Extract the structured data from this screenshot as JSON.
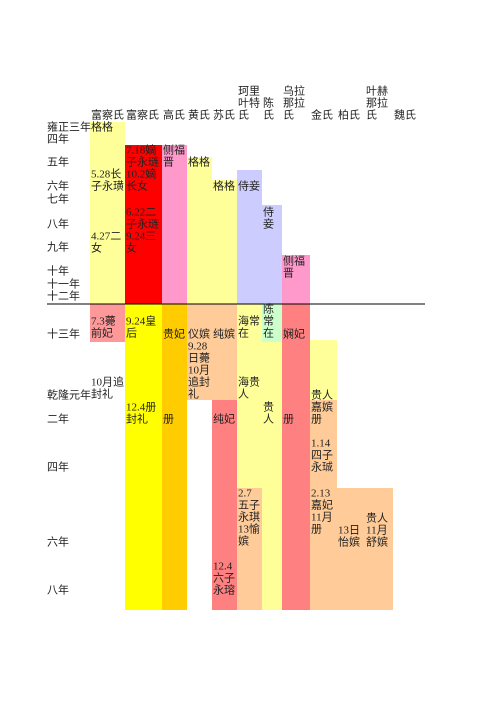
{
  "headers": [
    [
      "富察氏"
    ],
    [
      "富察氏"
    ],
    [
      "高氏"
    ],
    [
      "黄氏"
    ],
    [
      "苏氏"
    ],
    [
      "珂里",
      "叶特",
      "氏"
    ],
    [
      "陈",
      "氏"
    ],
    [
      "乌拉",
      "那拉",
      "氏"
    ],
    [
      "金氏"
    ],
    [
      "柏氏"
    ],
    [
      "叶赫",
      "那拉",
      "氏"
    ],
    [
      "魏氏"
    ]
  ],
  "rows": [
    "雍正三年",
    "四年",
    "五年",
    "六年",
    "七年",
    "八年",
    "九年",
    "十年",
    "十一年",
    "十二年",
    "十三年",
    "乾隆元年",
    "二年",
    "四年",
    "六年",
    "八年"
  ],
  "notes": [
    [
      "格格"
    ],
    [
      "7.18嫡",
      "子永琏",
      "10.2嫡",
      "长女"
    ],
    [
      "侧福",
      "晋"
    ],
    [
      "格格"
    ],
    [
      "5.28长",
      "子永璜"
    ],
    [
      "格格"
    ],
    [
      "侍妾"
    ],
    [
      "侍",
      "妾"
    ],
    [
      "6.22二",
      "子永琏",
      "9.24三",
      "女"
    ],
    [
      "4.27二",
      "女"
    ],
    [
      "侧福",
      "晋"
    ],
    [
      "7.3薨",
      "前妃"
    ],
    [
      "9.24皇",
      "后"
    ],
    [
      "贵妃"
    ],
    [
      "仪嫔"
    ],
    [
      "纯嫔"
    ],
    [
      "海常",
      "在"
    ],
    [
      "陈",
      "常",
      "在"
    ],
    [
      "娴妃"
    ],
    [
      "9.28",
      "日薨",
      "10月",
      "追封",
      "礼"
    ],
    [
      "10月追",
      "封礼"
    ],
    [
      "海贵",
      "人"
    ],
    [
      "贵人",
      "嘉嫔",
      "册"
    ],
    [
      "12.4册",
      "封礼"
    ],
    [
      "册"
    ],
    [
      "纯妃"
    ],
    [
      "贵",
      "人"
    ],
    [
      "册"
    ],
    [
      "1.14",
      "四子",
      "永珹"
    ],
    [
      "2.7",
      "五子",
      "永琪",
      "13愉",
      "嫔"
    ],
    [
      "2.13",
      "嘉妃",
      "11月",
      "册"
    ],
    [
      "13日",
      "怡嫔"
    ],
    [
      "贵人",
      "11月",
      "舒嫔"
    ],
    [
      "12.4",
      "六子",
      "永瑢"
    ]
  ]
}
